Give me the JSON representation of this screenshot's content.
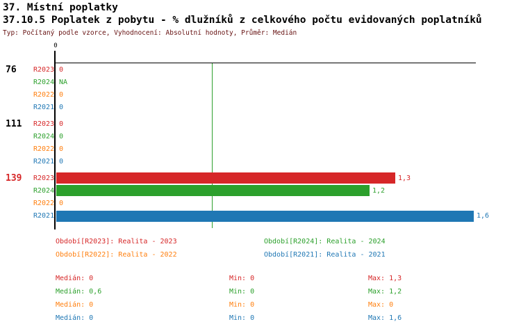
{
  "header": {
    "section_title": "37. Místní poplatky",
    "chart_title": "37.10.5 Poplatek z pobytu - % dlužníků z celkového počtu evidovaných poplatníků",
    "meta": "Typ: Počítaný podle vzorce, Vyhodnocení: Absolutní hodnoty, Průměr: Medián"
  },
  "colors": {
    "R2023": "#d62728",
    "R2024": "#2ca02c",
    "R2022": "#ff7f0e",
    "R2021": "#1f77b4",
    "axis": "#000000",
    "median_line": "#2ca02c",
    "group_label_default": "#000000",
    "group_label_highlight": "#d62728",
    "meta_text": "#661111"
  },
  "chart_data": {
    "type": "bar",
    "orientation": "horizontal",
    "title": "37.10.5 Poplatek z pobytu - % dlužníků z celkového počtu evidovaných poplatníků",
    "xlabel": "",
    "ylabel": "",
    "xlim": [
      0,
      1.61
    ],
    "axis": {
      "origin_tick_label": "0",
      "median_reference_value": 0.6
    },
    "series_order": [
      "R2023",
      "R2024",
      "R2022",
      "R2021"
    ],
    "groups": [
      {
        "label": "76",
        "highlight": false,
        "rows": [
          {
            "series": "R2023",
            "value": 0,
            "display": "0"
          },
          {
            "series": "R2024",
            "value": null,
            "display": "NA"
          },
          {
            "series": "R2022",
            "value": 0,
            "display": "0"
          },
          {
            "series": "R2021",
            "value": 0,
            "display": "0"
          }
        ]
      },
      {
        "label": "111",
        "highlight": false,
        "rows": [
          {
            "series": "R2023",
            "value": 0,
            "display": "0"
          },
          {
            "series": "R2024",
            "value": 0,
            "display": "0"
          },
          {
            "series": "R2022",
            "value": 0,
            "display": "0"
          },
          {
            "series": "R2021",
            "value": 0,
            "display": "0"
          }
        ]
      },
      {
        "label": "139",
        "highlight": true,
        "rows": [
          {
            "series": "R2023",
            "value": 1.3,
            "display": "1,3"
          },
          {
            "series": "R2024",
            "value": 1.2,
            "display": "1,2"
          },
          {
            "series": "R2022",
            "value": 0,
            "display": "0"
          },
          {
            "series": "R2021",
            "value": 1.6,
            "display": "1,6"
          }
        ]
      }
    ]
  },
  "legend": {
    "items": [
      {
        "series": "R2023",
        "label": "Období[R2023]: Realita - 2023",
        "col": 0,
        "row": 0
      },
      {
        "series": "R2024",
        "label": "Období[R2024]: Realita - 2024",
        "col": 1,
        "row": 0
      },
      {
        "series": "R2022",
        "label": "Období[R2022]: Realita - 2022",
        "col": 0,
        "row": 1
      },
      {
        "series": "R2021",
        "label": "Období[R2021]: Realita - 2021",
        "col": 1,
        "row": 1
      }
    ]
  },
  "stats": {
    "rows": [
      {
        "series": "R2023",
        "median": "Medián: 0",
        "min": "Min: 0",
        "max": "Max: 1,3"
      },
      {
        "series": "R2024",
        "median": "Medián: 0,6",
        "min": "Min: 0",
        "max": "Max: 1,2"
      },
      {
        "series": "R2022",
        "median": "Medián: 0",
        "min": "Min: 0",
        "max": "Max: 0"
      },
      {
        "series": "R2021",
        "median": "Medián: 0",
        "min": "Min: 0",
        "max": "Max: 1,6"
      }
    ]
  }
}
